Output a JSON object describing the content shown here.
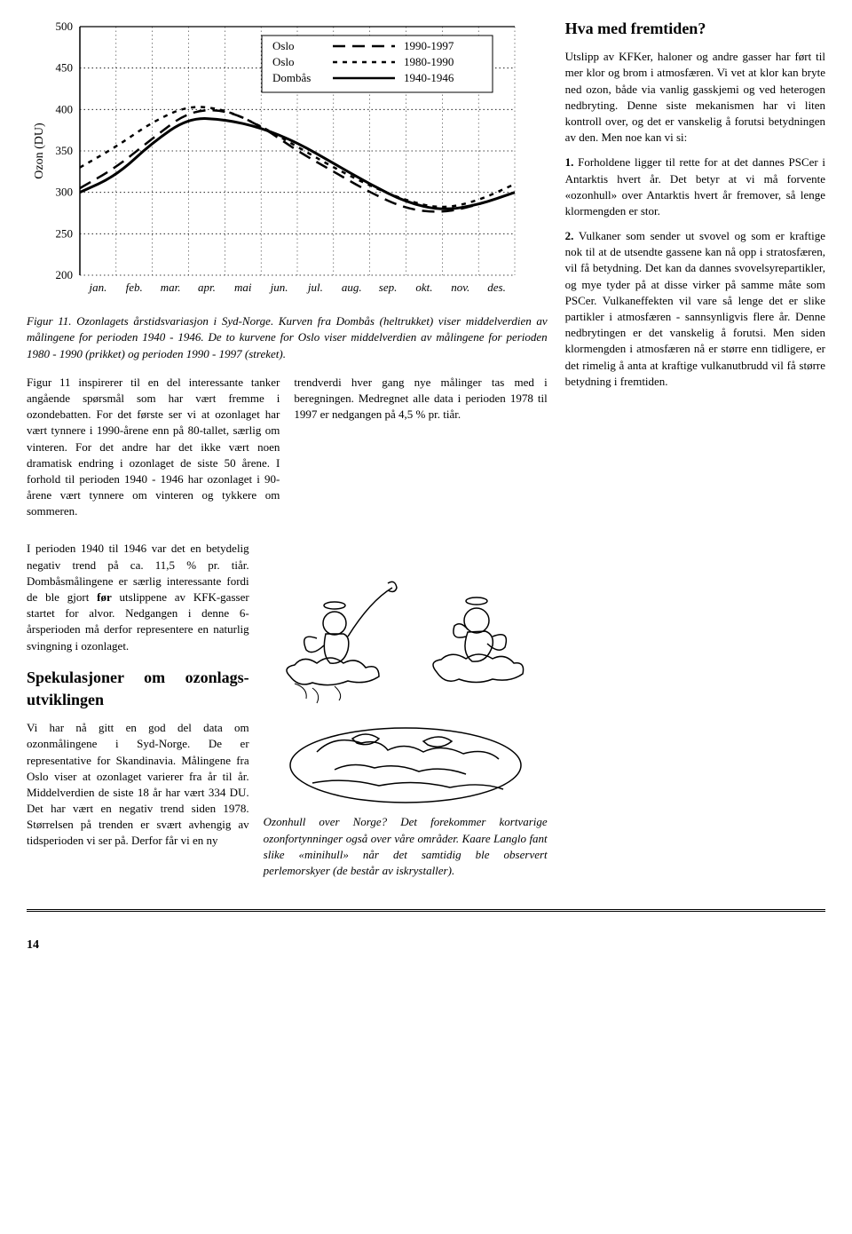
{
  "chart": {
    "ylabel": "Ozon (DU)",
    "ylim": [
      200,
      500
    ],
    "ytick_step": 50,
    "yticks": [
      200,
      250,
      300,
      350,
      400,
      450,
      500
    ],
    "xlabels": [
      "jan.",
      "feb.",
      "mar.",
      "apr.",
      "mai",
      "jun.",
      "jul.",
      "aug.",
      "sep.",
      "okt.",
      "nov.",
      "des."
    ],
    "legend_items": [
      {
        "label": "Oslo",
        "period": "1990-1997",
        "style": "dashed-long"
      },
      {
        "label": "Oslo",
        "period": "1980-1990",
        "style": "dashed-short"
      },
      {
        "label": "Dombås",
        "period": "1940-1946",
        "style": "solid"
      }
    ],
    "series": {
      "oslo_1990_1997": {
        "color": "#000000",
        "width": 2.5,
        "dash": "14,8",
        "values": [
          305,
          330,
          365,
          398,
          400,
          380,
          350,
          325,
          300,
          280,
          275,
          285,
          300
        ]
      },
      "oslo_1980_1990": {
        "color": "#000000",
        "width": 2.5,
        "dash": "5,6",
        "values": [
          330,
          355,
          385,
          405,
          400,
          380,
          355,
          330,
          308,
          290,
          280,
          290,
          310
        ]
      },
      "dombas_1940_1946": {
        "color": "#000000",
        "width": 3,
        "dash": "",
        "values": [
          300,
          320,
          360,
          390,
          388,
          378,
          360,
          335,
          310,
          288,
          278,
          285,
          300
        ]
      }
    },
    "background_color": "#ffffff",
    "grid_color": "#000000",
    "axis_color": "#000000",
    "label_fontsize": 13,
    "tick_fontsize": 13
  },
  "fig_caption": "Figur 11. Ozonlagets årstidsvariasjon i Syd-Norge. Kurven fra Dombås (heltrukket) viser middelverdien av målingene for perioden 1940 - 1946. De to kurvene for Oslo viser middelverdien av målingene for perioden 1980 - 1990 (prikket) og perioden 1990 - 1997 (streket).",
  "body": {
    "p1": "Figur 11 inspirerer til en del interessante tanker angående spørsmål som har vært fremme i ozondebatten. For det første ser vi at ozonlaget har vært tynnere  i 1990-årene enn  på 80-tallet, særlig om vinteren. For det andre har det ikke vært noen dramatisk endring i ozonlaget de siste 50 årene. I forhold til perioden 1940 - 1946 har ozonlaget i 90-årene vært tynnere om vinteren og tykkere om sommeren.",
    "p2": "trendverdi hver gang nye målinger tas med i beregningen. Medregnet alle data i perioden 1978 til 1997 er nedgangen på 4,5 % pr. tiår.",
    "p3_a": "I perioden 1940 til 1946 var det en betydelig negativ trend på ca. 11,5 % pr. tiår. Dombåsmålingene er særlig interessante fordi de ble gjort ",
    "p3_bold": "før",
    "p3_b": " utslippene av KFK-gasser startet for alvor. Nedgangen i denne 6-årsperioden må derfor representere en naturlig svingning i ozonlaget.",
    "h1": "Spekulasjoner om ozonlags-utviklingen",
    "p4": "Vi har nå gitt en god del data om ozonmålingene i Syd-Norge. De er representative for Skandinavia. Målingene fra Oslo viser at ozonlaget varierer fra år til år. Middelverdien de siste 18 år har vært 334 DU. Det har vært en negativ trend siden 1978.  Størrelsen på trenden er svært avhengig av tidsperioden vi ser på. Derfor får vi en ny"
  },
  "right": {
    "h1": "Hva med fremtiden?",
    "p1": "Utslipp av KFKer, haloner og andre gasser har ført til mer klor og brom i atmosfæren. Vi vet at klor kan bryte ned ozon, både via vanlig gasskjemi og ved heterogen nedbryting. Denne siste mekanismen har vi liten kontroll over, og det er vanskelig å forutsi betydningen av den. Men noe kan vi si:",
    "p2_b": "1.",
    "p2": " Forholdene ligger til rette for at det dannes PSCer i Antarktis hvert år. Det betyr at vi må forvente «ozonhull» over Antarktis hvert år fremover, så lenge klormengden er stor.",
    "p3_b": "2.",
    "p3": " Vulkaner som sender ut svovel og som er kraftige nok til at de utsendte gassene kan  nå opp i stratosfæren, vil få betydning. Det kan da dannes svovelsyrepartikler, og  mye tyder på at disse virker på samme måte som PSCer. Vulkaneffekten vil vare så lenge det er slike partikler i atmosfæren - sannsynligvis flere år. Denne nedbrytingen er det vanskelig å forutsi. Men siden  klormengden i atmosfæren nå er større enn tidligere, er det rimelig å anta at kraftige vulkanutbrudd vil få større betydning i fremtiden."
  },
  "illus_caption": "Ozonhull over Norge? Det  forekommer kortvarige ozonfortynninger også over våre områder. Kaare Langlo fant slike «minihull»  når det samtidig ble observert perlemorskyer (de består av iskrystaller).",
  "page_num": "14"
}
